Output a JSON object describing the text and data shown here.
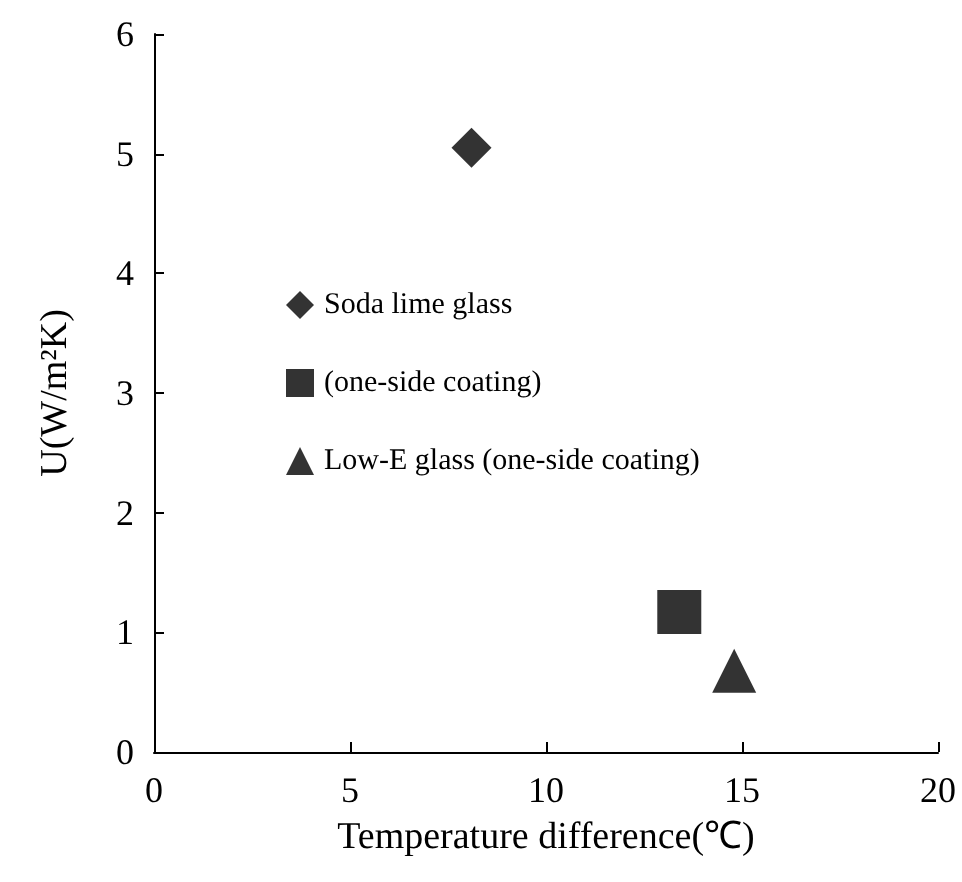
{
  "chart_data": {
    "type": "scatter",
    "xlabel": "Temperature difference(℃)",
    "ylabel": "U(W/m²K)",
    "xlim": [
      0,
      20
    ],
    "xticks": [
      0,
      5,
      10,
      15,
      20
    ],
    "ylim": [
      0,
      6
    ],
    "yticks": [
      0,
      1,
      2,
      3,
      4,
      5,
      6
    ],
    "grid": false,
    "legend": "left",
    "series": [
      {
        "name": "Soda lime glass",
        "color": "#000000",
        "marker": "diamond",
        "x": [
          8.1
        ],
        "values": [
          5.05
        ]
      },
      {
        "name": "(one-side coating)",
        "color": "#000000",
        "marker": "square",
        "x": [
          13.4
        ],
        "values": [
          1.17
        ]
      },
      {
        "name": "Low-E glass (one-side coating)",
        "color": "#000000",
        "marker": "triangle",
        "x": [
          14.8
        ],
        "values": [
          0.68
        ]
      }
    ]
  }
}
